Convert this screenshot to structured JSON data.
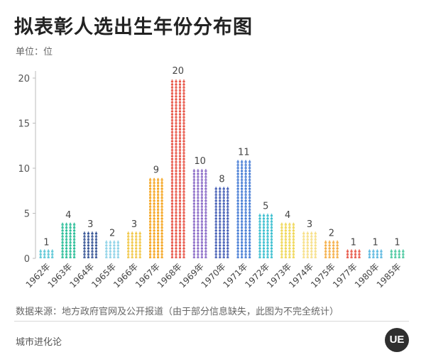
{
  "title": "拟表彰人选出生年份分布图",
  "unit_label": "单位：位",
  "source_note": "数据来源：地方政府官网及公开报道（由于部分信息缺失，此图为不完全统计）",
  "brand": "城市进化论",
  "logo_text": "UE",
  "chart_data": {
    "type": "bar",
    "title": "拟表彰人选出生年份分布图",
    "ylabel": "单位：位",
    "xlabel": "",
    "ylim": [
      0,
      20
    ],
    "yticks": [
      0,
      5,
      10,
      15,
      20
    ],
    "grid": false,
    "categories": [
      "1962年",
      "1963年",
      "1964年",
      "1965年",
      "1966年",
      "1967年",
      "1968年",
      "1969年",
      "1970年",
      "1971年",
      "1972年",
      "1973年",
      "1974年",
      "1975年",
      "1977年",
      "1980年",
      "1985年"
    ],
    "values": [
      1,
      4,
      3,
      2,
      3,
      9,
      20,
      10,
      8,
      11,
      5,
      4,
      3,
      2,
      1,
      1,
      1
    ],
    "colors": [
      "#5cc7d6",
      "#2fbf9a",
      "#3d5a99",
      "#8fd3e8",
      "#f2c94c",
      "#f5a623",
      "#e8584a",
      "#8e6fc9",
      "#4a63b8",
      "#4a7fd6",
      "#3fc0d0",
      "#f0d85a",
      "#f7e08a",
      "#f5b04a",
      "#e8584a",
      "#5cb8e0",
      "#4cc9a0"
    ]
  }
}
